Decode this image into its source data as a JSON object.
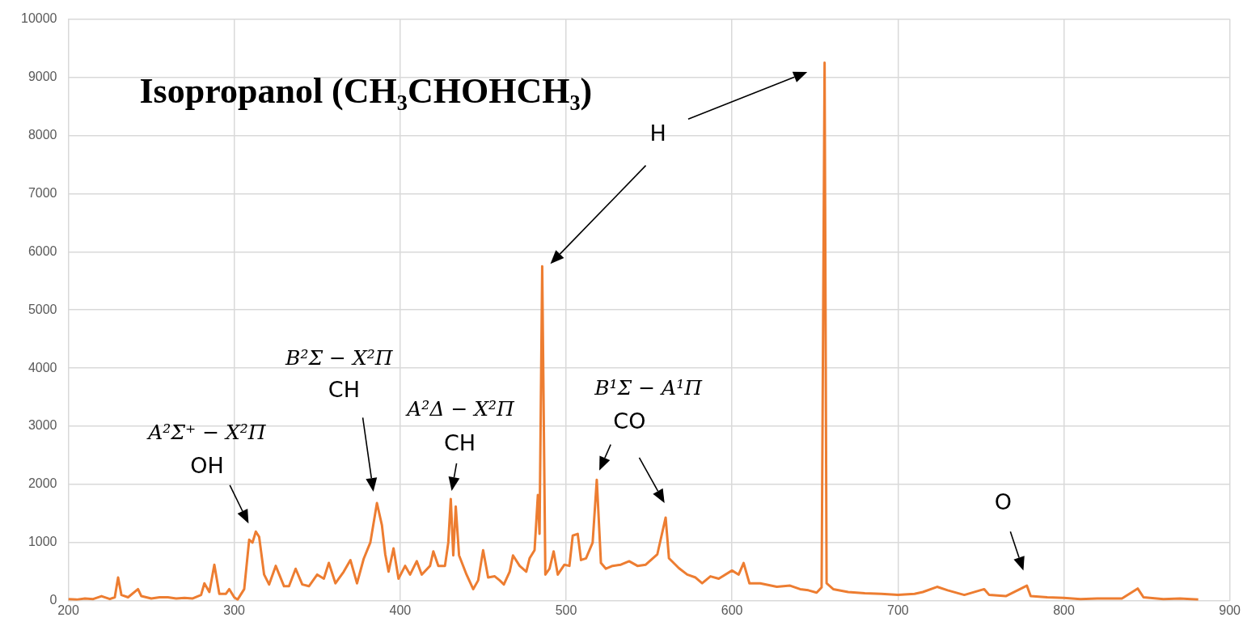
{
  "chart_data": {
    "type": "line",
    "title": "Isopropanol (CH₃CHOHCH₃)",
    "x": [
      200,
      205,
      210,
      215,
      220,
      225,
      228,
      230,
      232,
      236,
      242,
      244,
      250,
      255,
      260,
      265,
      270,
      275,
      280,
      282,
      285,
      288,
      291,
      295,
      297,
      300,
      302,
      306,
      309,
      311,
      313,
      315,
      318,
      321,
      325,
      330,
      333,
      337,
      341,
      345,
      350,
      354,
      357,
      361,
      366,
      370,
      374,
      378,
      382,
      386,
      389,
      391,
      393,
      396,
      399,
      403,
      406,
      410,
      413,
      418,
      420,
      423,
      427,
      429,
      430.5,
      432,
      433.5,
      435.5,
      440,
      444,
      447,
      450,
      453,
      457,
      460,
      462.5,
      466,
      468,
      472,
      476,
      478,
      481,
      483,
      484,
      485.6,
      487.5,
      490,
      492.5,
      495,
      499,
      502,
      504,
      507,
      509,
      512,
      516,
      518.5,
      521,
      524,
      528,
      533,
      538,
      543,
      548,
      555,
      560,
      562,
      568,
      573,
      578,
      582,
      587,
      592,
      600,
      604,
      607,
      610.5,
      617,
      627,
      635,
      641,
      646,
      651,
      654,
      655.8,
      657,
      661,
      670,
      680,
      690,
      700,
      710,
      715,
      723.6,
      730,
      740,
      752,
      755,
      765,
      777.7,
      780,
      790,
      800,
      810,
      820,
      835,
      844.5,
      848,
      860,
      870,
      881
    ],
    "series": [
      {
        "color": "#ed7d31",
        "values": [
          30,
          20,
          40,
          30,
          80,
          30,
          60,
          400,
          100,
          60,
          200,
          80,
          40,
          60,
          60,
          40,
          50,
          40,
          100,
          300,
          150,
          620,
          120,
          120,
          200,
          60,
          20,
          200,
          1050,
          1000,
          1190,
          1100,
          450,
          280,
          600,
          250,
          250,
          550,
          280,
          250,
          450,
          380,
          650,
          300,
          500,
          700,
          300,
          720,
          1000,
          1680,
          1300,
          800,
          500,
          900,
          380,
          600,
          450,
          680,
          450,
          600,
          850,
          600,
          600,
          1000,
          1750,
          780,
          1620,
          780,
          450,
          200,
          350,
          870,
          400,
          420,
          350,
          280,
          500,
          780,
          600,
          500,
          730,
          870,
          1820,
          1150,
          5750,
          450,
          550,
          850,
          450,
          620,
          600,
          1120,
          1150,
          700,
          730,
          1000,
          2080,
          650,
          550,
          600,
          620,
          680,
          600,
          620,
          800,
          1430,
          730,
          560,
          450,
          400,
          300,
          420,
          380,
          520,
          450,
          650,
          300,
          300,
          240,
          260,
          200,
          180,
          140,
          230,
          9250,
          300,
          200,
          150,
          130,
          120,
          100,
          120,
          150,
          240,
          180,
          100,
          200,
          100,
          80,
          260,
          80,
          60,
          50,
          30,
          40,
          40,
          210,
          60,
          30,
          40,
          20
        ]
      }
    ],
    "xlim": [
      200,
      900
    ],
    "xticks": [
      200,
      300,
      400,
      500,
      600,
      700,
      800,
      900
    ],
    "ylim": [
      0,
      10000
    ],
    "yticks": [
      0,
      1000,
      2000,
      3000,
      4000,
      5000,
      6000,
      7000,
      8000,
      9000,
      10000
    ],
    "grid": true,
    "legend": false,
    "marker": "none",
    "line_style": "solid",
    "annotations": [
      "A²Σ⁺ − X²Π\nOH",
      "B²Σ − X²Π\nCH",
      "A²Δ − X²Π\nCH",
      "H",
      "B¹Σ − A¹Π\nCO",
      "O"
    ]
  }
}
